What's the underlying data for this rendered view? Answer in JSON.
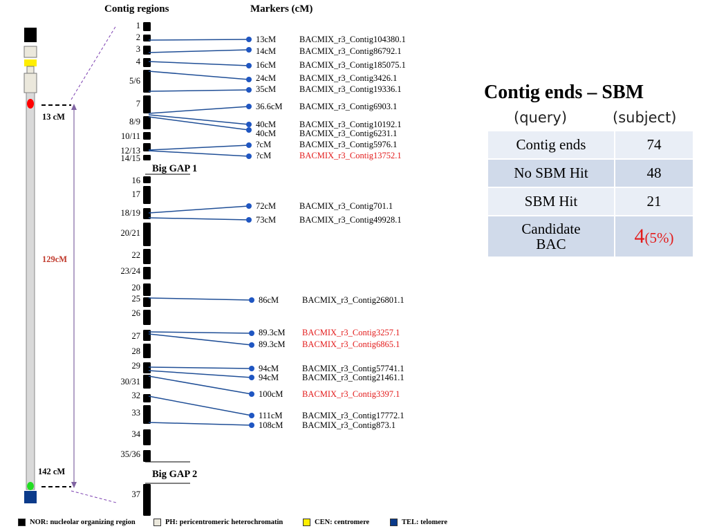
{
  "headers": {
    "contig_regions": "Contig regions",
    "markers": "Markers  (cM)"
  },
  "chromosome_cm": {
    "top": "13 cM",
    "middle": "129cM",
    "bottom": "142 cM"
  },
  "contig_regions": [
    "1",
    "2",
    "3",
    "4",
    "5/6",
    "7",
    "8/9",
    "10/11",
    "12/13",
    "14/15",
    "16",
    "17",
    "18/19",
    "20/21",
    "22",
    "23/24",
    "20",
    "25",
    "26",
    "27",
    "28",
    "29",
    "30/31",
    "32",
    "33",
    "34",
    "35/36",
    "37"
  ],
  "gaps": [
    "Big GAP 1",
    "Big GAP 2"
  ],
  "markers": [
    {
      "cm": "13cM",
      "contig": "BACMIX_r3_Contig104380.1",
      "red": false
    },
    {
      "cm": "14cM",
      "contig": "BACMIX_r3_Contig86792.1",
      "red": false
    },
    {
      "cm": "16cM",
      "contig": "BACMIX_r3_Contig185075.1",
      "red": false
    },
    {
      "cm": "24cM",
      "contig": "BACMIX_r3_Contig3426.1",
      "red": false
    },
    {
      "cm": "35cM",
      "contig": "BACMIX_r3_Contig19336.1",
      "red": false
    },
    {
      "cm": "36.6cM",
      "contig": "BACMIX_r3_Contig6903.1",
      "red": false
    },
    {
      "cm": "40cM",
      "contig": "BACMIX_r3_Contig10192.1",
      "red": false
    },
    {
      "cm": "40cM",
      "contig": "BACMIX_r3_Contig6231.1",
      "red": false
    },
    {
      "cm": "?cM",
      "contig": "BACMIX_r3_Contig5976.1",
      "red": false
    },
    {
      "cm": "?cM",
      "contig": "BACMIX_r3_Contig13752.1",
      "red": true
    },
    {
      "cm": "72cM",
      "contig": "BACMIX_r3_Contig701.1",
      "red": false
    },
    {
      "cm": "73cM",
      "contig": "BACMIX_r3_Contig49928.1",
      "red": false
    },
    {
      "cm": "86cM",
      "contig": "BACMIX_r3_Contig26801.1",
      "red": false
    },
    {
      "cm": "89.3cM",
      "contig": "BACMIX_r3_Contig3257.1",
      "red": true
    },
    {
      "cm": "89.3cM",
      "contig": "BACMIX_r3_Contig6865.1",
      "red": true
    },
    {
      "cm": "94cM",
      "contig": "BACMIX_r3_Contig57741.1",
      "red": false
    },
    {
      "cm": "94cM",
      "contig": "BACMIX_r3_Contig21461.1",
      "red": false
    },
    {
      "cm": "100cM",
      "contig": "BACMIX_r3_Contig3397.1",
      "red": true
    },
    {
      "cm": "111cM",
      "contig": "BACMIX_r3_Contig17772.1",
      "red": false
    },
    {
      "cm": "108cM",
      "contig": "BACMIX_r3_Contig873.1",
      "red": false
    }
  ],
  "summary": {
    "title": "Contig ends – SBM",
    "query_label": "(query)",
    "subject_label": "(subject)",
    "rows": [
      {
        "label": "Contig ends",
        "value": "74"
      },
      {
        "label": "No SBM  Hit",
        "value": "48"
      },
      {
        "label": "SBM  Hit",
        "value": "21"
      }
    ],
    "candidate_label_1": "Candidate",
    "candidate_label_2": "BAC",
    "candidate_value": "4",
    "candidate_percent": "(5%)"
  },
  "legend": [
    {
      "text": "NOR: nucleolar organizing region",
      "color": "#000000"
    },
    {
      "text": "PH: pericentromeric heterochromatin",
      "color": "#ebe8dc"
    },
    {
      "text": "CEN: centromere",
      "color": "#ffee00"
    },
    {
      "text": "TEL: telomere",
      "color": "#0b3a8a"
    }
  ],
  "colors": {
    "marker_line": "#1f4e96",
    "highlight": "#e31b1b",
    "bracket": "#8064a2"
  }
}
